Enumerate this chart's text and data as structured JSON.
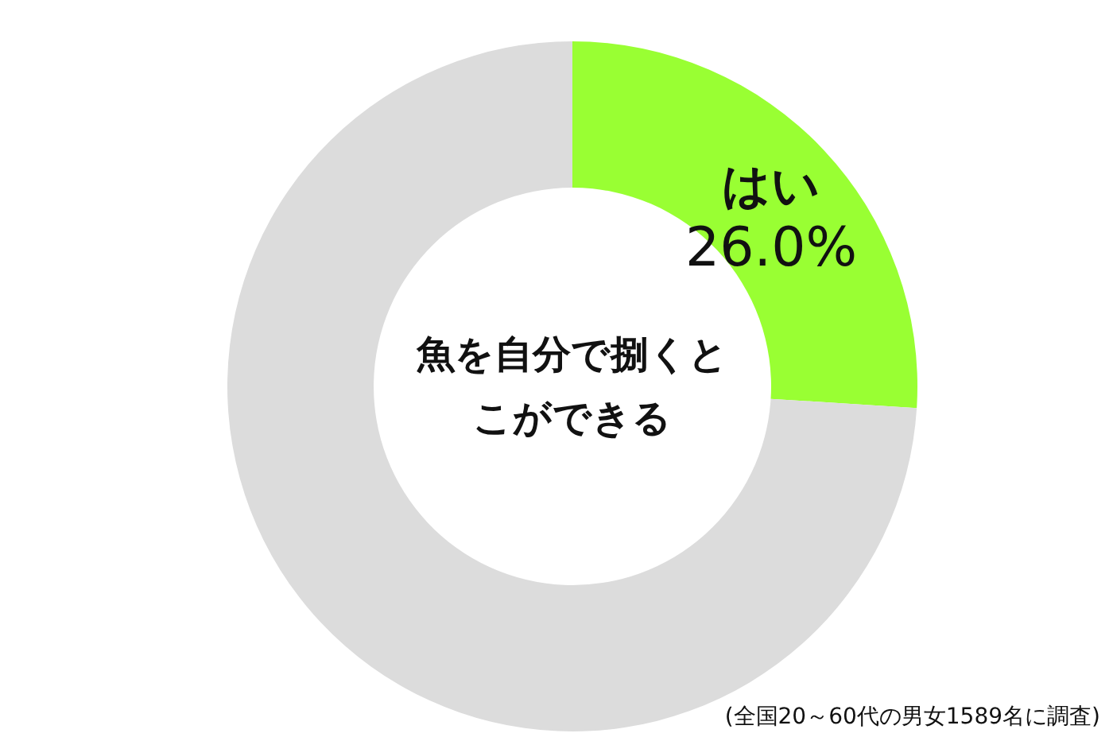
{
  "chart_data": {
    "type": "donut",
    "title": "魚を自分で捌くとこができる",
    "categories": [
      "はい",
      null
    ],
    "values": [
      26.0,
      74.0
    ],
    "colors": [
      "#99ff33",
      "#dcdcdc"
    ],
    "value_labels": [
      "26.0%",
      null
    ],
    "annotations": [
      "(全国20～60代の男女1589名に調査)"
    ]
  }
}
